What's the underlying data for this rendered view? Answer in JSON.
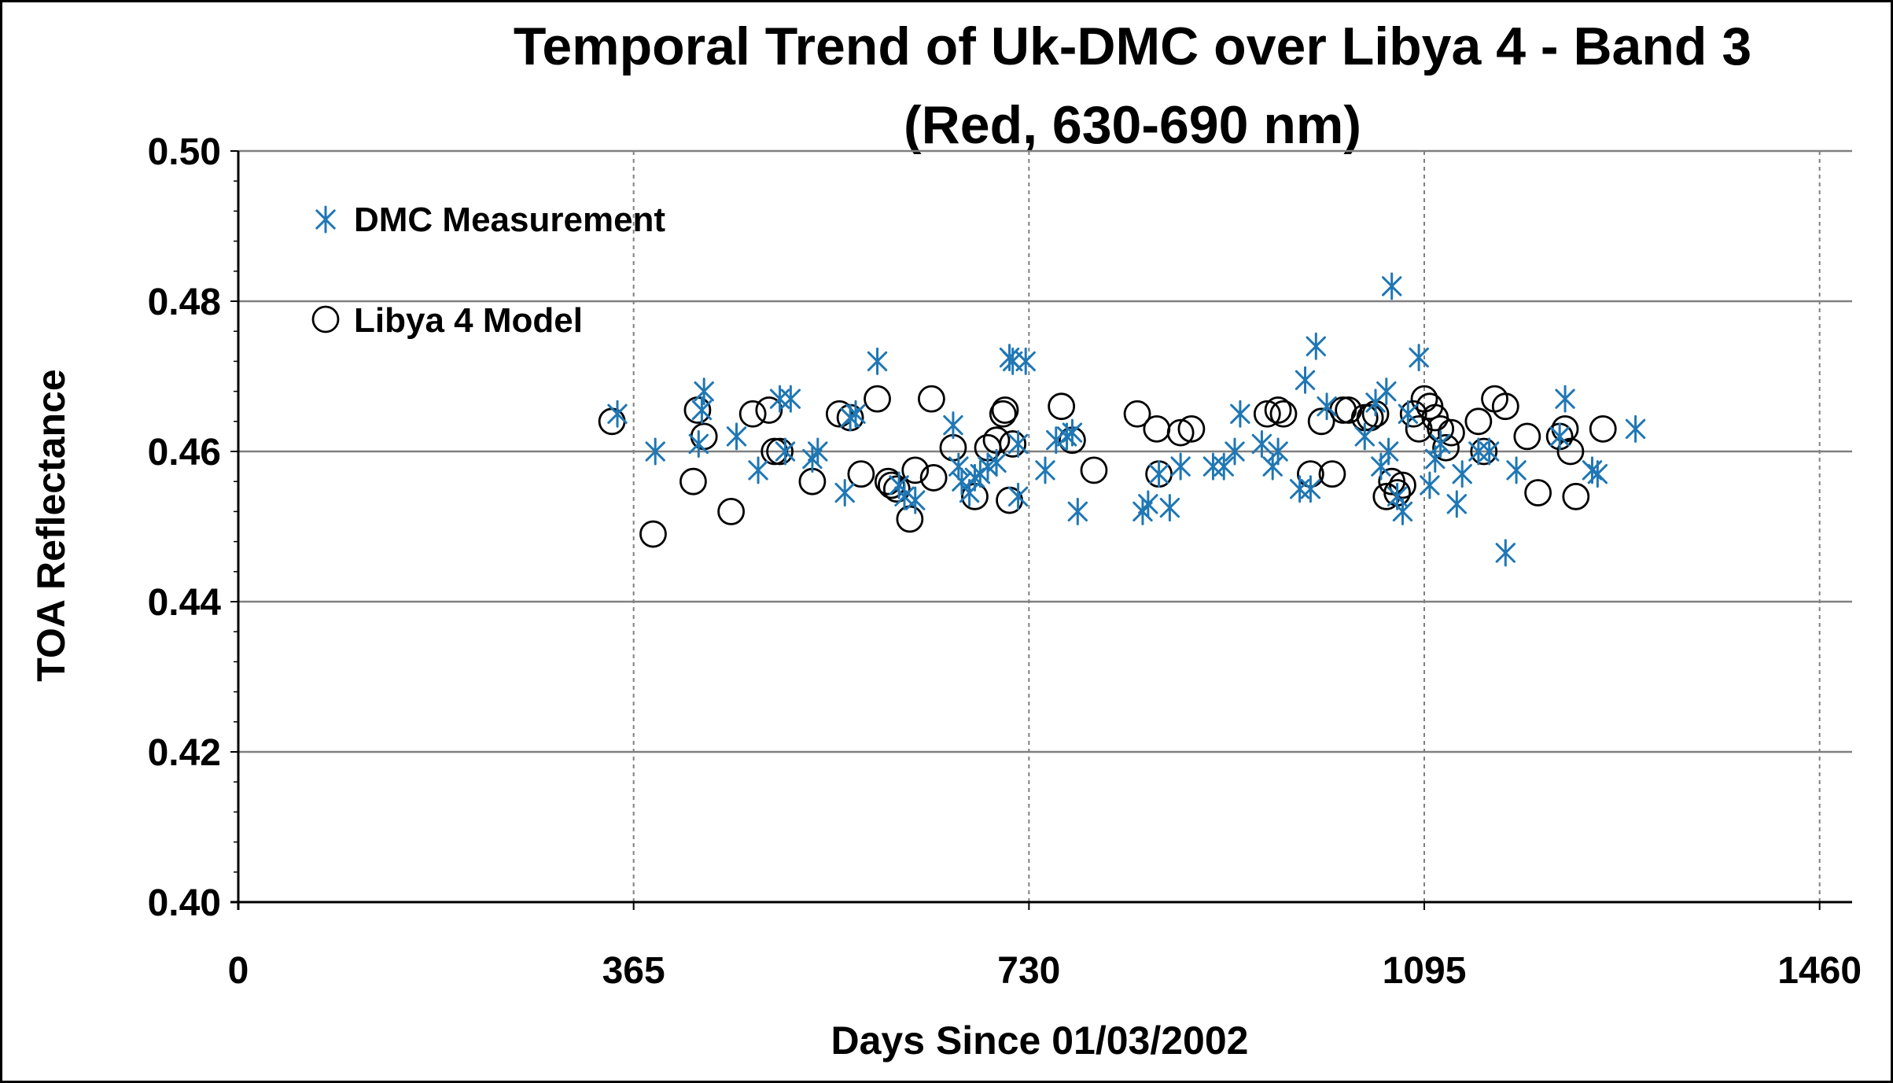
{
  "chart_data": {
    "type": "scatter",
    "title_line1": "Temporal Trend of Uk-DMC over Libya 4 - Band 3",
    "title_line2": "(Red, 630-690 nm)",
    "xlabel": "Days Since 01/03/2002",
    "ylabel": "TOA Reflectance",
    "xlim": [
      0,
      1490
    ],
    "ylim": [
      0.4,
      0.5
    ],
    "x_ticks": [
      0,
      365,
      730,
      1095,
      1460
    ],
    "x_tick_labels": [
      "0",
      "365",
      "730",
      "1095",
      "1460"
    ],
    "y_ticks": [
      0.4,
      0.42,
      0.44,
      0.46,
      0.48,
      0.5
    ],
    "y_tick_labels": [
      "0.40",
      "0.42",
      "0.44",
      "0.46",
      "0.48",
      "0.50"
    ],
    "grid": {
      "horizontal": "solid",
      "vertical": "dashed"
    },
    "legend_position": "top-left",
    "colors": {
      "measurement": "#1f77b4",
      "model": "#000000",
      "grid": "#808080",
      "axis": "#000000"
    },
    "series": [
      {
        "name": "DMC Measurement",
        "marker": "asterisk",
        "x": [
          350,
          385,
          425,
          428,
          430,
          460,
          480,
          500,
          505,
          510,
          530,
          535,
          560,
          565,
          570,
          590,
          610,
          615,
          625,
          660,
          665,
          668,
          675,
          680,
          685,
          692,
          700,
          712,
          715,
          720,
          720,
          727,
          745,
          755,
          765,
          770,
          775,
          835,
          840,
          850,
          860,
          870,
          900,
          910,
          920,
          925,
          945,
          955,
          960,
          980,
          985,
          990,
          995,
          1005,
          1040,
          1050,
          1055,
          1060,
          1062,
          1065,
          1070,
          1075,
          1080,
          1090,
          1100,
          1105,
          1110,
          1125,
          1130,
          1145,
          1155,
          1170,
          1180,
          1220,
          1225,
          1250,
          1255,
          1290
        ],
        "y": [
          0.465,
          0.46,
          0.461,
          0.4655,
          0.468,
          0.462,
          0.4575,
          0.467,
          0.46,
          0.467,
          0.459,
          0.46,
          0.4545,
          0.4645,
          0.465,
          0.472,
          0.4555,
          0.454,
          0.4535,
          0.4635,
          0.458,
          0.456,
          0.4545,
          0.4565,
          0.457,
          0.458,
          0.4585,
          0.4725,
          0.472,
          0.454,
          0.461,
          0.472,
          0.4575,
          0.4615,
          0.462,
          0.4625,
          0.452,
          0.452,
          0.453,
          0.457,
          0.4525,
          0.458,
          0.458,
          0.458,
          0.46,
          0.465,
          0.461,
          0.458,
          0.46,
          0.455,
          0.4695,
          0.455,
          0.474,
          0.466,
          0.462,
          0.4665,
          0.458,
          0.468,
          0.46,
          0.482,
          0.454,
          0.452,
          0.465,
          0.4725,
          0.4555,
          0.459,
          0.461,
          0.453,
          0.457,
          0.46,
          0.46,
          0.4465,
          0.4575,
          0.462,
          0.467,
          0.4575,
          0.457,
          0.463
        ]
      },
      {
        "name": "Libya 4 Model",
        "marker": "circle",
        "x": [
          345,
          383,
          420,
          424,
          430,
          455,
          475,
          490,
          495,
          500,
          530,
          555,
          565,
          575,
          590,
          600,
          603,
          608,
          620,
          625,
          640,
          642,
          660,
          680,
          692,
          700,
          706,
          708,
          712,
          715,
          760,
          770,
          790,
          830,
          848,
          850,
          870,
          880,
          950,
          960,
          965,
          990,
          1000,
          1010,
          1020,
          1025,
          1040,
          1045,
          1050,
          1060,
          1065,
          1070,
          1075,
          1085,
          1090,
          1095,
          1100,
          1105,
          1110,
          1115,
          1120,
          1145,
          1150,
          1160,
          1170,
          1190,
          1200,
          1220,
          1225,
          1230,
          1235,
          1260
        ],
        "y": [
          0.464,
          0.449,
          0.456,
          0.4655,
          0.462,
          0.452,
          0.465,
          0.4655,
          0.46,
          0.46,
          0.456,
          0.465,
          0.4645,
          0.457,
          0.467,
          0.456,
          0.4555,
          0.455,
          0.451,
          0.4575,
          0.467,
          0.4565,
          0.4605,
          0.454,
          0.4605,
          0.4615,
          0.465,
          0.4655,
          0.4535,
          0.461,
          0.466,
          0.4615,
          0.4575,
          0.465,
          0.463,
          0.457,
          0.4625,
          0.463,
          0.465,
          0.4655,
          0.465,
          0.457,
          0.464,
          0.457,
          0.4655,
          0.4655,
          0.4645,
          0.4645,
          0.465,
          0.454,
          0.456,
          0.4545,
          0.4555,
          0.465,
          0.463,
          0.467,
          0.466,
          0.4645,
          0.463,
          0.4605,
          0.4625,
          0.464,
          0.46,
          0.467,
          0.466,
          0.462,
          0.4545,
          0.462,
          0.463,
          0.46,
          0.454,
          0.463
        ]
      }
    ]
  }
}
